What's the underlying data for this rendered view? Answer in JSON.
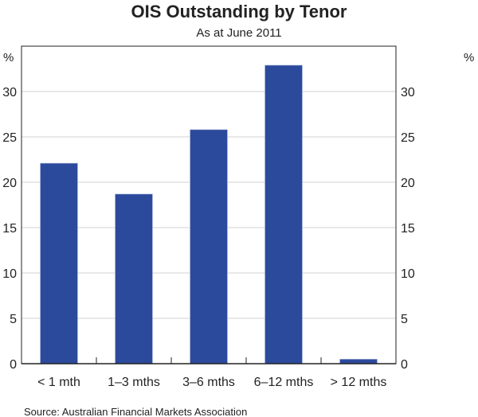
{
  "chart_data": {
    "type": "bar",
    "title": "OIS Outstanding by Tenor",
    "subtitle": "As at June 2011",
    "ylabel_left": "%",
    "ylabel_right": "%",
    "categories": [
      "< 1 mth",
      "1–3 mths",
      "3–6 mths",
      "6–12 mths",
      "> 12 mths"
    ],
    "values": [
      22.1,
      18.7,
      25.8,
      32.9,
      0.5
    ],
    "ylim": [
      0,
      35
    ],
    "yticks": [
      0,
      5,
      10,
      15,
      20,
      25,
      30
    ],
    "grid": true,
    "bar_color": "#2c4a9c",
    "source": "Source: Australian Financial Markets Association"
  }
}
